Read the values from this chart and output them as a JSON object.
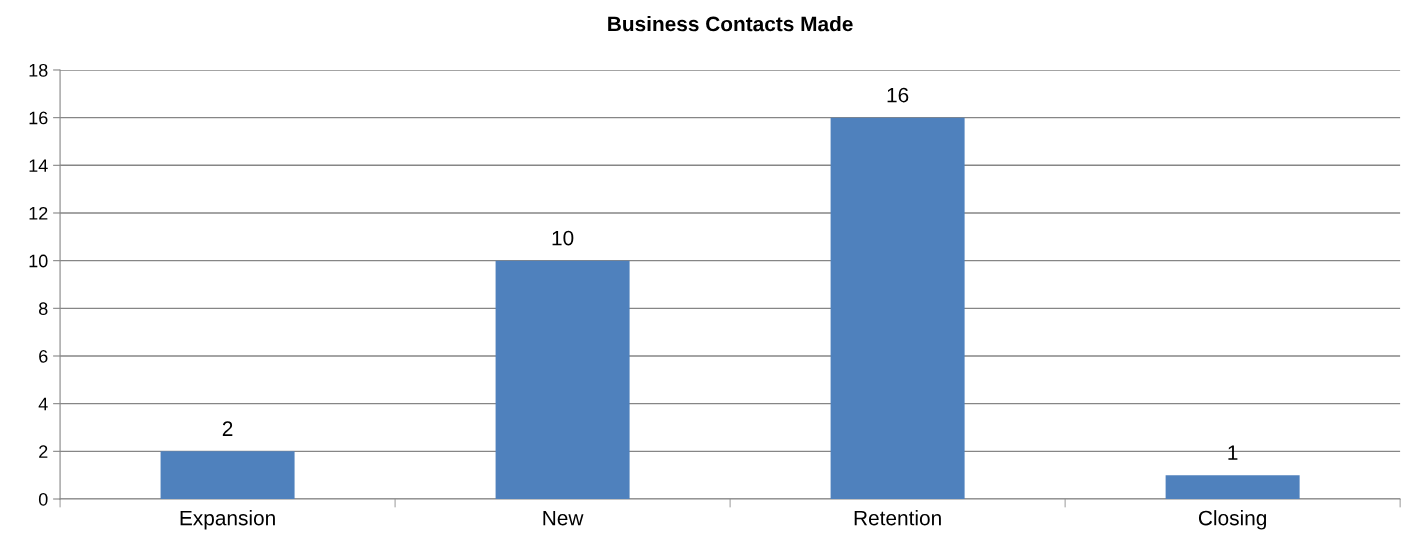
{
  "chart_data": {
    "type": "bar",
    "title": "Business Contacts Made",
    "categories": [
      "Expansion",
      "New",
      "Retention",
      "Closing"
    ],
    "values": [
      2,
      10,
      16,
      1
    ],
    "color": "#4f81bd",
    "ylim": [
      0,
      18
    ],
    "yticks": [
      0,
      2,
      4,
      6,
      8,
      10,
      12,
      14,
      16,
      18
    ],
    "grid": "y",
    "data_labels": true
  }
}
